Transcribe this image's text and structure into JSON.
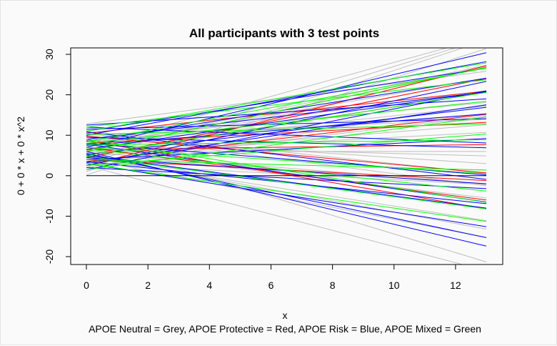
{
  "chart_data": {
    "type": "line",
    "title": "All participants with 3 test points",
    "xlabel": "x",
    "ylabel": "0 + 0 * x + 0 * x^2",
    "caption": "APOE Neutral = Grey, APOE Protective = Red, APOE Risk = Blue, APOE Mixed = Green",
    "xlim": [
      0,
      13
    ],
    "ylim": [
      -20,
      30
    ],
    "xticks": [
      0,
      2,
      4,
      6,
      8,
      10,
      12
    ],
    "yticks": [
      -20,
      -10,
      0,
      10,
      20,
      30
    ],
    "grid": false,
    "legend": "none",
    "series": [
      {
        "color": "#bebebe",
        "lines": [
          [
            7,
            2.1
          ],
          [
            5,
            -1.4
          ],
          [
            4,
            2.3
          ],
          [
            3,
            0.9
          ],
          [
            8.5,
            0.5
          ],
          [
            6.5,
            1.6
          ],
          [
            2.5,
            -2.0
          ],
          [
            9,
            0.7
          ],
          [
            1,
            2.5
          ],
          [
            11,
            -0.8
          ],
          [
            6,
            0.0
          ],
          [
            3.5,
            1.8
          ],
          [
            10,
            0.3
          ],
          [
            4.5,
            -1.2
          ],
          [
            7.5,
            -0.2
          ],
          [
            12.8,
            1.0
          ],
          [
            8.6,
            -2.3
          ],
          [
            0.2,
            2.4
          ],
          [
            6.8,
            0.8
          ],
          [
            5.5,
            0.4
          ],
          [
            4.2,
            -1.5
          ],
          [
            9.5,
            -0.5
          ],
          [
            2,
            1.2
          ],
          [
            7.2,
            1.3
          ],
          [
            5.8,
            -0.6
          ],
          [
            3,
            -0.4
          ],
          [
            8,
            1.0
          ],
          [
            6.2,
            -0.9
          ],
          [
            4.8,
            0.6
          ],
          [
            10.5,
            -1.0
          ]
        ]
      },
      {
        "color": "#ff0000",
        "lines": [
          [
            6,
            1.6
          ],
          [
            4,
            -0.4
          ],
          [
            8,
            0.4
          ],
          [
            5,
            1.2
          ],
          [
            9.8,
            -0.7
          ],
          [
            7,
            -1.0
          ],
          [
            3.5,
            0.9
          ],
          [
            10.5,
            0.8
          ],
          [
            2.5,
            1.9
          ],
          [
            8.7,
            -1.3
          ],
          [
            6.4,
            0.1
          ],
          [
            4.5,
            1.5
          ]
        ]
      },
      {
        "color": "#0000ff",
        "lines": [
          [
            11,
            1.2
          ],
          [
            3,
            -1.2
          ],
          [
            7,
            1.8
          ],
          [
            5,
            -1.0
          ],
          [
            9,
            0.9
          ],
          [
            2.5,
            1.6
          ],
          [
            12,
            -0.3
          ],
          [
            6,
            -1.8
          ],
          [
            4,
            0.4
          ],
          [
            8,
            -0.6
          ],
          [
            10,
            1.4
          ],
          [
            1.5,
            1.5
          ],
          [
            3.5,
            -0.8
          ],
          [
            7.5,
            0.6
          ],
          [
            5.5,
            -1.6
          ],
          [
            9.5,
            -0.2
          ],
          [
            11.5,
            0.2
          ],
          [
            6.5,
            1.1
          ],
          [
            4.5,
            -0.5
          ],
          [
            8.5,
            1.2
          ],
          [
            2,
            -0.4
          ],
          [
            12.5,
            0.5
          ],
          [
            7.8,
            -1.1
          ],
          [
            5.2,
            0.9
          ],
          [
            10.8,
            -0.9
          ],
          [
            3.2,
            1.1
          ]
        ]
      },
      {
        "color": "#00ff00",
        "lines": [
          [
            6,
            1.6
          ],
          [
            4,
            -0.2
          ],
          [
            8,
            0.8
          ],
          [
            11,
            1.3
          ],
          [
            3,
            -1.1
          ],
          [
            7,
            -0.5
          ],
          [
            5,
            1.2
          ],
          [
            9,
            -1.2
          ],
          [
            2.5,
            0.6
          ],
          [
            10.2,
            0.2
          ],
          [
            6.6,
            -0.8
          ],
          [
            1.5,
            1.0
          ],
          [
            8.4,
            1.4
          ],
          [
            4.8,
            -1.0
          ],
          [
            12,
            0.9
          ],
          [
            7.6,
            0.1
          ]
        ]
      },
      {
        "color": "#000000",
        "lines": [
          [
            0,
            0
          ]
        ]
      }
    ]
  }
}
